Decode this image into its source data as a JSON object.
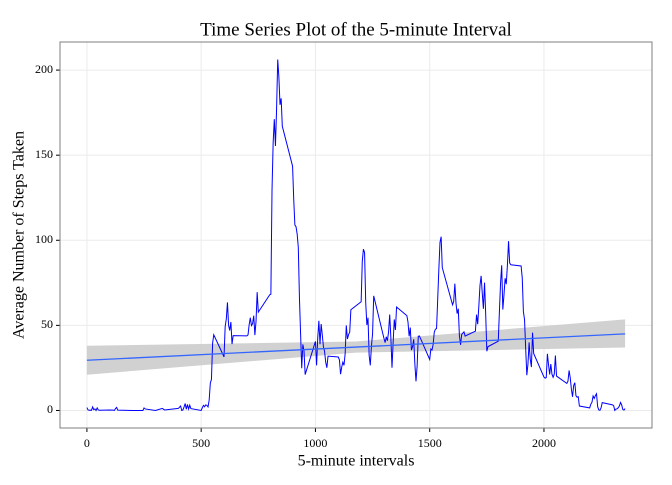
{
  "chart_data": {
    "type": "line",
    "title": "Time Series Plot of the 5-minute Interval",
    "x_label": "5-minute intervals",
    "y_label": "Average Number of Steps Taken",
    "xlim": [
      -117.75,
      2472.75
    ],
    "ylim": [
      -10.3,
      216.5
    ],
    "xticks": [
      0,
      500,
      1000,
      1500,
      2000
    ],
    "yticks": [
      0,
      50,
      100,
      150,
      200
    ],
    "grid": true,
    "series": [
      {
        "color": "#0000ff",
        "x": [
          0,
          5,
          10,
          15,
          20,
          25,
          30,
          35,
          40,
          45,
          50,
          55,
          100,
          115,
          120,
          125,
          130,
          135,
          200,
          245,
          250,
          255,
          300,
          330,
          340,
          400,
          410,
          415,
          420,
          425,
          430,
          435,
          440,
          445,
          450,
          455,
          500,
          505,
          510,
          515,
          520,
          525,
          530,
          535,
          540,
          545,
          550,
          555,
          600,
          605,
          610,
          615,
          620,
          625,
          630,
          635,
          640,
          700,
          705,
          710,
          715,
          720,
          725,
          730,
          735,
          740,
          745,
          750,
          800,
          805,
          810,
          815,
          820,
          825,
          830,
          835,
          840,
          845,
          850,
          855,
          900,
          905,
          910,
          915,
          920,
          925,
          930,
          935,
          940,
          945,
          950,
          955,
          1000,
          1005,
          1010,
          1015,
          1020,
          1025,
          1030,
          1035,
          1040,
          1045,
          1050,
          1055,
          1100,
          1105,
          1110,
          1115,
          1120,
          1125,
          1130,
          1135,
          1140,
          1145,
          1150,
          1155,
          1200,
          1205,
          1210,
          1215,
          1220,
          1225,
          1230,
          1235,
          1240,
          1245,
          1250,
          1255,
          1300,
          1305,
          1310,
          1315,
          1320,
          1325,
          1330,
          1335,
          1340,
          1345,
          1350,
          1355,
          1400,
          1405,
          1410,
          1415,
          1420,
          1425,
          1430,
          1435,
          1440,
          1445,
          1450,
          1455,
          1500,
          1505,
          1510,
          1515,
          1520,
          1525,
          1530,
          1535,
          1540,
          1545,
          1550,
          1555,
          1600,
          1605,
          1610,
          1615,
          1620,
          1625,
          1630,
          1635,
          1640,
          1645,
          1650,
          1655,
          1700,
          1705,
          1710,
          1715,
          1720,
          1725,
          1730,
          1735,
          1740,
          1745,
          1750,
          1755,
          1800,
          1805,
          1810,
          1815,
          1820,
          1825,
          1830,
          1835,
          1840,
          1845,
          1850,
          1855,
          1900,
          1905,
          1910,
          1915,
          1920,
          1925,
          1930,
          1935,
          1940,
          1945,
          1950,
          1955,
          2000,
          2005,
          2010,
          2015,
          2020,
          2025,
          2030,
          2035,
          2040,
          2045,
          2050,
          2055,
          2100,
          2105,
          2110,
          2115,
          2120,
          2125,
          2130,
          2135,
          2140,
          2145,
          2150,
          2155,
          2200,
          2205,
          2210,
          2215,
          2220,
          2225,
          2230,
          2235,
          2240,
          2245,
          2250,
          2255,
          2300,
          2305,
          2310,
          2315,
          2320,
          2325,
          2330,
          2335,
          2340,
          2345,
          2350,
          2355
        ],
        "values": [
          1.7,
          0.3,
          0.1,
          0.2,
          0.1,
          2.1,
          0.5,
          0.9,
          0,
          1.5,
          0.3,
          0.1,
          0.3,
          0.2,
          0,
          1.1,
          1.8,
          0.2,
          0,
          0,
          1.5,
          0.9,
          0,
          1.2,
          0.3,
          1.2,
          2.6,
          0,
          0.3,
          2,
          4.1,
          0.7,
          3.5,
          0.8,
          3.1,
          1.1,
          0,
          1.6,
          3,
          2.2,
          3.3,
          3,
          2.1,
          6.1,
          16,
          18.3,
          39.5,
          44.5,
          31.5,
          49.3,
          53.8,
          63.5,
          50,
          47,
          52,
          39,
          44,
          43.8,
          44.4,
          50.5,
          54.5,
          49.9,
          51,
          55.7,
          44.3,
          52.3,
          69.5,
          57.8,
          68,
          68.3,
          129.4,
          157.5,
          171.2,
          155.4,
          177.3,
          206.2,
          195.9,
          179.6,
          183.4,
          167,
          143.5,
          124,
          109,
          108,
          103.7,
          95.9,
          66.2,
          45.2,
          24.8,
          38.8,
          34.98,
          21.1,
          40.6,
          26.5,
          42.4,
          52.7,
          38.9,
          50.8,
          44.3,
          37.4,
          34.7,
          28.3,
          25.1,
          31.9,
          31.4,
          29.7,
          21.3,
          25.5,
          28.4,
          26.5,
          33.4,
          49.98,
          42,
          44.6,
          46,
          59.2,
          63.9,
          87.7,
          94.8,
          92.8,
          63.4,
          50.2,
          54.5,
          32.4,
          26.5,
          37.7,
          45.1,
          67.3,
          42.3,
          39.9,
          43.3,
          40.98,
          46.2,
          56.4,
          42.8,
          25.1,
          39.97,
          53.5,
          47.3,
          60.8,
          55.75,
          51.96,
          43.6,
          48.7,
          35.5,
          37.5,
          41.8,
          27.5,
          17.1,
          26.1,
          43.6,
          43.8,
          30,
          36.1,
          35.5,
          38.8,
          45.96,
          47.75,
          48.1,
          65.3,
          82.9,
          98.7,
          102.1,
          83.96,
          62.1,
          64.1,
          74.5,
          63.2,
          56.9,
          59.8,
          43.9,
          38.6,
          44.7,
          45.5,
          46.2,
          43.7,
          46.6,
          56.3,
          50.7,
          61.2,
          73.4,
          79.1,
          68.9,
          59.7,
          75.1,
          56.5,
          34.8,
          37.5,
          40.7,
          58,
          74.7,
          85.3,
          59.3,
          67.8,
          77.7,
          74.2,
          85.3,
          99.5,
          86.6,
          85.6,
          84.9,
          77.8,
          58.04,
          53.4,
          36.3,
          20.7,
          27.4,
          40,
          30.2,
          25.5,
          45.7,
          33.5,
          19.6,
          19,
          19.3,
          33.3,
          26.8,
          21.2,
          27.3,
          21.3,
          19.5,
          21.3,
          32.3,
          20.2,
          15.9,
          17.2,
          23.5,
          19.2,
          12.5,
          8,
          14.7,
          16.3,
          8.7,
          7.8,
          8.1,
          2.6,
          1.5,
          3.7,
          4.8,
          8.5,
          7.1,
          8.7,
          9.8,
          2.2,
          0.3,
          0.1,
          1.6,
          4.6,
          3.3,
          2.8,
          0,
          0.8,
          0.96,
          1.6,
          2.6,
          4.7,
          3.3,
          0.6,
          0.2,
          1.1
        ]
      }
    ],
    "trend": {
      "color": "#3366ff",
      "band_color": "#cccccc",
      "x": [
        0,
        1177.5,
        2355
      ],
      "values": [
        29.5,
        37.25,
        45
      ],
      "lower": [
        21,
        34,
        37
      ],
      "upper": [
        38,
        40.5,
        53.5
      ]
    }
  }
}
